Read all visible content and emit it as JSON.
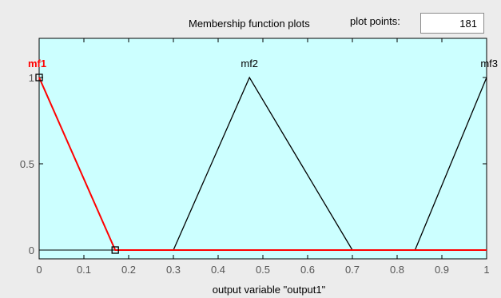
{
  "header": {
    "title": "Membership function plots",
    "plot_points_label": "plot points:",
    "plot_points_value": "181"
  },
  "colors": {
    "plot_background": "#ccffff",
    "selected_mf": "#ff0000",
    "mf_line": "#000000"
  },
  "chart_data": {
    "type": "line",
    "title": "",
    "xlabel": "output variable \"output1\"",
    "ylabel": "",
    "xlim": [
      0,
      1
    ],
    "ylim": [
      0,
      1
    ],
    "xticks": [
      "0",
      "0.1",
      "0.2",
      "0.3",
      "0.4",
      "0.5",
      "0.6",
      "0.7",
      "0.8",
      "0.9",
      "1"
    ],
    "yticks": [
      "0",
      "0.5",
      "1"
    ],
    "grid": false,
    "series": [
      {
        "name": "mf1",
        "selected": true,
        "points": [
          [
            0,
            1
          ],
          [
            0.17,
            0
          ],
          [
            1,
            0
          ]
        ]
      },
      {
        "name": "mf2",
        "selected": false,
        "points": [
          [
            0.3,
            0
          ],
          [
            0.47,
            1
          ],
          [
            0.7,
            0
          ]
        ]
      },
      {
        "name": "mf3",
        "selected": false,
        "points": [
          [
            0.84,
            0
          ],
          [
            1,
            1
          ]
        ]
      }
    ]
  }
}
